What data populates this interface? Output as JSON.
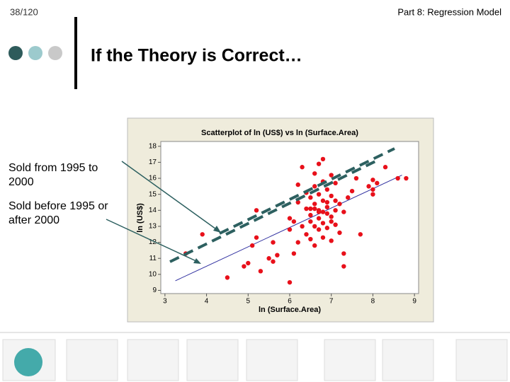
{
  "header": {
    "page": "38/120",
    "section": "Part 8: Regression Model"
  },
  "title": "If the Theory is Correct…",
  "notes": [
    "Sold from 1995 to 2000",
    "Sold before 1995 or after 2000"
  ],
  "chart_data": {
    "type": "scatter",
    "title": "Scatterplot of ln (US$) vs ln (Surface.Area)",
    "x_label": "ln (Surface.Area)",
    "y_label": "ln (US$)",
    "xlim": [
      2.9,
      9.1
    ],
    "ylim": [
      8.8,
      18.3
    ],
    "xticks": [
      3,
      4,
      5,
      6,
      7,
      8,
      9
    ],
    "yticks": [
      9,
      10,
      11,
      12,
      13,
      14,
      15,
      16,
      17,
      18
    ],
    "color": "#e8101a",
    "x": [
      3.5,
      3.9,
      4.5,
      4.9,
      5.0,
      5.1,
      5.2,
      5.2,
      5.3,
      5.5,
      5.6,
      5.7,
      5.6,
      6.0,
      6.0,
      6.0,
      6.1,
      6.1,
      6.2,
      6.2,
      6.2,
      6.3,
      6.3,
      6.4,
      6.4,
      6.4,
      6.5,
      6.5,
      6.5,
      6.5,
      6.6,
      6.6,
      6.6,
      6.6,
      6.6,
      6.7,
      6.7,
      6.7,
      6.7,
      6.7,
      6.8,
      6.8,
      6.8,
      6.8,
      6.8,
      6.9,
      6.9,
      6.9,
      6.9,
      7.0,
      7.0,
      7.0,
      7.0,
      7.1,
      7.1,
      7.1,
      7.2,
      7.2,
      7.3,
      7.4,
      7.5,
      7.3,
      7.3,
      7.6,
      7.9,
      8.0,
      8.0,
      8.1,
      8.3,
      8.6,
      8.8,
      7.7,
      8.0,
      6.7,
      6.9,
      7.0,
      6.8,
      6.6,
      7.1,
      6.5
    ],
    "y": [
      11.3,
      12.5,
      9.8,
      10.5,
      10.7,
      11.8,
      14.0,
      12.3,
      10.2,
      11.0,
      10.8,
      11.2,
      12.0,
      9.5,
      13.5,
      12.8,
      11.3,
      13.3,
      12.0,
      14.5,
      15.6,
      13.0,
      16.7,
      14.1,
      12.5,
      15.1,
      13.7,
      13.3,
      12.2,
      14.8,
      13.0,
      14.4,
      15.5,
      16.3,
      11.8,
      13.5,
      14.0,
      12.8,
      15.0,
      16.9,
      13.2,
      14.6,
      12.3,
      15.8,
      17.2,
      13.8,
      14.2,
      12.9,
      15.3,
      13.6,
      14.9,
      12.1,
      16.2,
      14.0,
      13.1,
      15.7,
      14.4,
      12.6,
      13.9,
      14.8,
      15.2,
      11.3,
      10.5,
      16.0,
      15.5,
      15.3,
      15.9,
      15.7,
      16.7,
      16.0,
      16.0,
      12.5,
      15.0,
      13.9,
      14.5,
      13.3,
      13.9,
      14.1,
      14.6,
      14.1
    ],
    "lines": [
      {
        "x": [
          3.25,
          8.7
        ],
        "y": [
          9.6,
          16.2
        ],
        "color": "#3030a0"
      }
    ]
  }
}
